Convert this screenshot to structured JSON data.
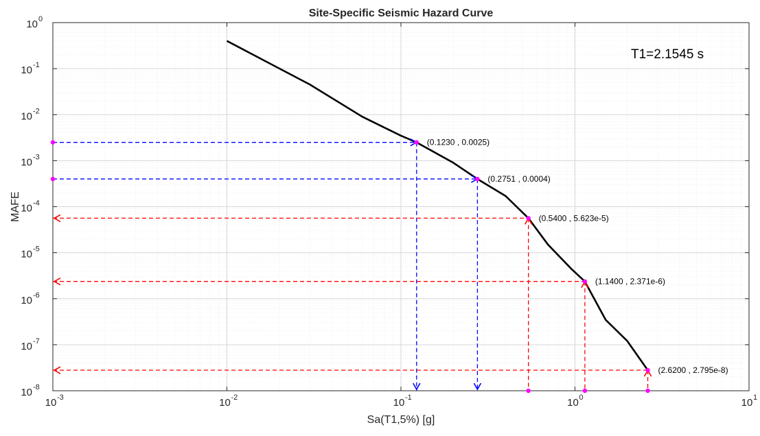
{
  "chart_data": {
    "type": "line",
    "title": "Site-Specific Seismic Hazard Curve",
    "xlabel": "Sa(T1,5%) [g]",
    "ylabel": "MAFE",
    "xscale": "log",
    "yscale": "log",
    "xlim": [
      0.001,
      10
    ],
    "ylim": [
      1e-08,
      1
    ],
    "grid": true,
    "minor_grid": true,
    "x_ticks": [
      {
        "base": "10",
        "exp": "-3"
      },
      {
        "base": "10",
        "exp": "-2"
      },
      {
        "base": "10",
        "exp": "-1"
      },
      {
        "base": "10",
        "exp": "0"
      },
      {
        "base": "10",
        "exp": "1"
      }
    ],
    "y_ticks": [
      {
        "base": "10",
        "exp": "0"
      },
      {
        "base": "10",
        "exp": "-1"
      },
      {
        "base": "10",
        "exp": "-2"
      },
      {
        "base": "10",
        "exp": "-3"
      },
      {
        "base": "10",
        "exp": "-4"
      },
      {
        "base": "10",
        "exp": "-5"
      },
      {
        "base": "10",
        "exp": "-6"
      },
      {
        "base": "10",
        "exp": "-7"
      },
      {
        "base": "10",
        "exp": "-8"
      }
    ],
    "annotation": "T1=2.1545 s",
    "hazard_curve": {
      "color": "#000000",
      "x": [
        0.01,
        0.03,
        0.06,
        0.1,
        0.123,
        0.2,
        0.2751,
        0.4,
        0.54,
        0.7,
        0.95,
        1.14,
        1.5,
        2.0,
        2.62
      ],
      "y": [
        0.4,
        0.045,
        0.009,
        0.0035,
        0.0025,
        0.0009,
        0.0004,
        0.00017,
        5.623e-05,
        1.5e-05,
        4.5e-06,
        2.371e-06,
        3.5e-07,
        1.2e-07,
        2.795e-08
      ]
    },
    "points": [
      {
        "x": 0.123,
        "y": 0.0025,
        "label": "(0.1230 , 0.0025)",
        "color": "#0000ff",
        "direction": "down"
      },
      {
        "x": 0.2751,
        "y": 0.0004,
        "label": "(0.2751 , 0.0004)",
        "color": "#0000ff",
        "direction": "down"
      },
      {
        "x": 0.54,
        "y": 5.623e-05,
        "label": "(0.5400 , 5.623e-5)",
        "color": "#ff0000",
        "direction": "left"
      },
      {
        "x": 1.14,
        "y": 2.371e-06,
        "label": "(1.1400 , 2.371e-6)",
        "color": "#ff0000",
        "direction": "left"
      },
      {
        "x": 2.62,
        "y": 2.795e-08,
        "label": "(2.6200 , 2.795e-8)",
        "color": "#ff0000",
        "direction": "left"
      }
    ],
    "marker_color": "#ff00ff"
  }
}
